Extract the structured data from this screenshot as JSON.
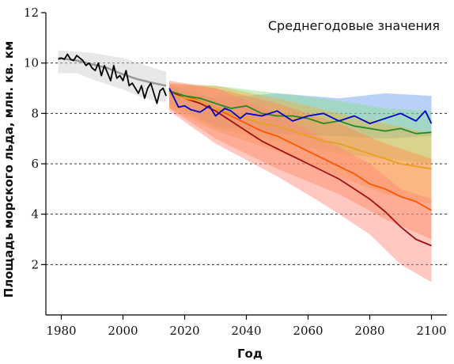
{
  "chart_data": {
    "type": "line",
    "title": "",
    "annotation": "Среднегодовые значения",
    "xlabel": "Год",
    "ylabel": "Площадь морского льда, млн. кв. км",
    "xlim": [
      1975,
      2105
    ],
    "ylim": [
      0,
      12
    ],
    "xticks": [
      1980,
      2000,
      2020,
      2040,
      2060,
      2080,
      2100
    ],
    "yticks": [
      2,
      4,
      6,
      8,
      10,
      12
    ],
    "ygrid": [
      2,
      4,
      6,
      8,
      10
    ],
    "series": [
      {
        "color": "#000000",
        "x": [
          1979,
          1980,
          1981,
          1982,
          1983,
          1984,
          1985,
          1986,
          1987,
          1988,
          1989,
          1990,
          1991,
          1992,
          1993,
          1994,
          1995,
          1996,
          1997,
          1998,
          1999,
          2000,
          2001,
          2002,
          2003,
          2004,
          2005,
          2006,
          2007,
          2008,
          2009,
          2010,
          2011,
          2012,
          2013,
          2014
        ],
        "values": [
          10.15,
          10.2,
          10.15,
          10.35,
          10.15,
          10.1,
          10.3,
          10.2,
          10.1,
          9.9,
          10.0,
          9.8,
          9.7,
          10.0,
          9.5,
          9.9,
          9.6,
          9.3,
          9.9,
          9.4,
          9.5,
          9.3,
          9.7,
          9.1,
          9.2,
          9.0,
          8.8,
          9.1,
          8.6,
          9.0,
          9.2,
          8.8,
          8.4,
          8.9,
          9.0,
          8.7
        ]
      },
      {
        "color": "#999999",
        "x": [
          1979,
          1985,
          1990,
          1995,
          2000,
          2005,
          2010,
          2014
        ],
        "values": [
          10.2,
          10.1,
          9.95,
          9.8,
          9.55,
          9.35,
          9.2,
          9.1
        ],
        "band": {
          "x": [
            1979,
            1985,
            1990,
            1995,
            2000,
            2005,
            2010,
            2014
          ],
          "low": [
            9.6,
            9.6,
            9.35,
            9.15,
            8.95,
            8.7,
            8.5,
            8.45
          ],
          "high": [
            10.5,
            10.45,
            10.4,
            10.3,
            10.2,
            10.0,
            9.8,
            9.65
          ],
          "color": "#cccccc"
        }
      },
      {
        "color": "#0000cc",
        "x": [
          2015,
          2018,
          2020,
          2022,
          2025,
          2028,
          2030,
          2033,
          2035,
          2038,
          2040,
          2045,
          2050,
          2055,
          2060,
          2065,
          2070,
          2075,
          2080,
          2085,
          2090,
          2095,
          2098,
          2100
        ],
        "values": [
          9.0,
          8.25,
          8.3,
          8.15,
          8.05,
          8.3,
          7.9,
          8.2,
          8.1,
          7.8,
          8.0,
          7.9,
          8.1,
          7.7,
          7.9,
          8.0,
          7.7,
          7.9,
          7.6,
          7.8,
          8.0,
          7.7,
          8.1,
          7.6
        ],
        "band": {
          "x": [
            2015,
            2030,
            2050,
            2070,
            2085,
            2100
          ],
          "low": [
            8.4,
            7.5,
            7.2,
            7.1,
            7.0,
            7.1
          ],
          "high": [
            9.1,
            8.6,
            8.8,
            8.6,
            8.8,
            8.7
          ],
          "color": "#6699ee"
        }
      },
      {
        "color": "#228b22",
        "x": [
          2015,
          2020,
          2025,
          2030,
          2035,
          2040,
          2045,
          2050,
          2055,
          2060,
          2065,
          2070,
          2075,
          2080,
          2085,
          2090,
          2095,
          2100
        ],
        "values": [
          8.9,
          8.7,
          8.6,
          8.4,
          8.2,
          8.3,
          8.0,
          7.9,
          7.9,
          7.8,
          7.6,
          7.7,
          7.5,
          7.4,
          7.3,
          7.4,
          7.2,
          7.25
        ],
        "band": {
          "x": [
            2015,
            2030,
            2050,
            2070,
            2085,
            2100
          ],
          "low": [
            8.3,
            7.4,
            6.9,
            6.4,
            6.2,
            6.0
          ],
          "high": [
            9.1,
            9.1,
            8.8,
            8.5,
            8.2,
            8.1
          ],
          "color": "#88dd88"
        }
      },
      {
        "color": "#e8a020",
        "x": [
          2015,
          2020,
          2025,
          2030,
          2035,
          2040,
          2045,
          2050,
          2055,
          2060,
          2065,
          2070,
          2075,
          2080,
          2085,
          2090,
          2095,
          2100
        ],
        "values": [
          8.8,
          8.6,
          8.5,
          8.2,
          8.0,
          7.8,
          7.6,
          7.5,
          7.3,
          7.1,
          6.9,
          6.8,
          6.6,
          6.4,
          6.2,
          6.0,
          5.9,
          5.8
        ],
        "band": {
          "x": [
            2015,
            2030,
            2050,
            2070,
            2085,
            2100
          ],
          "low": [
            8.2,
            7.3,
            6.5,
            5.5,
            4.8,
            4.4
          ],
          "high": [
            9.2,
            9.1,
            8.6,
            8.0,
            7.6,
            7.2
          ],
          "color": "#f0b040"
        }
      },
      {
        "color": "#ff5500",
        "x": [
          2015,
          2020,
          2025,
          2030,
          2035,
          2040,
          2045,
          2050,
          2055,
          2060,
          2065,
          2070,
          2075,
          2080,
          2085,
          2090,
          2095,
          2100
        ],
        "values": [
          8.9,
          8.7,
          8.5,
          8.2,
          7.9,
          7.6,
          7.3,
          7.1,
          6.8,
          6.5,
          6.2,
          5.9,
          5.6,
          5.2,
          5.0,
          4.7,
          4.5,
          4.15
        ],
        "band": {
          "x": [
            2015,
            2030,
            2050,
            2070,
            2085,
            2100
          ],
          "low": [
            8.2,
            7.0,
            5.8,
            4.8,
            3.8,
            3.0
          ],
          "high": [
            9.2,
            9.0,
            8.4,
            7.6,
            6.8,
            6.2
          ],
          "color": "#ff8a50"
        }
      },
      {
        "color": "#a01010",
        "x": [
          2015,
          2020,
          2025,
          2030,
          2035,
          2040,
          2045,
          2050,
          2055,
          2060,
          2065,
          2070,
          2075,
          2080,
          2085,
          2090,
          2095,
          2100
        ],
        "values": [
          8.9,
          8.6,
          8.4,
          8.1,
          7.7,
          7.3,
          6.9,
          6.6,
          6.3,
          6.0,
          5.7,
          5.4,
          5.0,
          4.6,
          4.1,
          3.5,
          3.0,
          2.75
        ],
        "band": {
          "x": [
            2015,
            2030,
            2050,
            2065,
            2080,
            2090,
            2100
          ],
          "low": [
            8.1,
            6.8,
            5.5,
            4.4,
            3.2,
            2.0,
            1.3
          ],
          "high": [
            9.3,
            9.0,
            8.0,
            7.0,
            6.0,
            5.0,
            4.6
          ],
          "color": "#ff8877"
        }
      }
    ]
  }
}
